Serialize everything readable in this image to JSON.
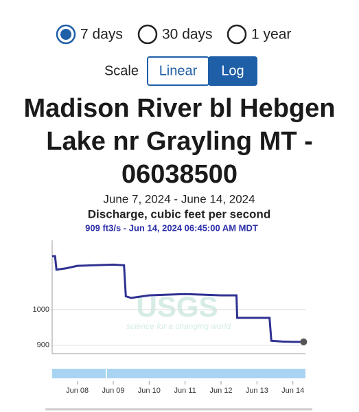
{
  "controls": {
    "range_options": [
      "7 days",
      "30 days",
      "1 year"
    ],
    "selected_range": 0,
    "scale_label": "Scale",
    "scale_options": [
      "Linear",
      "Log"
    ]
  },
  "chart_data": {
    "type": "line",
    "title": "Madison River bl Hebgen Lake nr Grayling MT - 06038500",
    "subtitle": "June 7, 2024 - June 14, 2024",
    "y_label": "Discharge, cubic feet per second",
    "status": "909 ft3/s - Jun 14, 2024 06:45:00 AM MDT",
    "watermark": "USGS",
    "watermark_tagline": "science for a changing world",
    "log": true,
    "x": [
      7.3,
      7.38,
      7.42,
      7.7,
      8.0,
      8.5,
      9.0,
      9.3,
      9.35,
      9.5,
      10.0,
      10.5,
      11.0,
      11.5,
      12.0,
      12.43,
      12.45,
      13.0,
      13.35,
      13.4,
      13.7,
      14.0,
      14.3
    ],
    "series": [
      {
        "name": "Discharge",
        "color": "#2f3192",
        "values": [
          1171,
          1171,
          1125,
          1130,
          1138,
          1140,
          1142,
          1140,
          1040,
          1035,
          1043,
          1045,
          1047,
          1045,
          1043,
          1043,
          976,
          976,
          976,
          912,
          910,
          909,
          909
        ]
      }
    ],
    "xlim": [
      7.3,
      14.35
    ],
    "xticks": [
      {
        "value": 8,
        "label": "Jun 08"
      },
      {
        "value": 9,
        "label": "Jun 09"
      },
      {
        "value": 10,
        "label": "Jun 10"
      },
      {
        "value": 11,
        "label": "Jun 11"
      },
      {
        "value": 12,
        "label": "Jun 12"
      },
      {
        "value": 13,
        "label": "Jun 13"
      },
      {
        "value": 14,
        "label": "Jun 14"
      }
    ],
    "ylim": [
      878,
      1227
    ],
    "yticks": [
      900,
      1000
    ],
    "grid": true
  }
}
